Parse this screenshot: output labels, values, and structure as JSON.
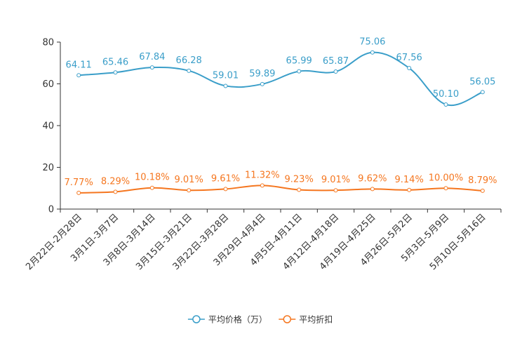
{
  "chart_data": {
    "type": "line",
    "title": "",
    "xlabel": "",
    "ylabel": "",
    "ylim": [
      0,
      80
    ],
    "yticks": [
      0,
      20,
      40,
      60,
      80
    ],
    "grid": false,
    "legend_position": "bottom-center",
    "categories": [
      "2月22日-2月28日",
      "3月1日-3月7日",
      "3月8日-3月14日",
      "3月15日-3月21日",
      "3月22日-3月28日",
      "3月29日-4月4日",
      "4月5日-4月11日",
      "4月12日-4月18日",
      "4月19日-4月25日",
      "4月26日-5月2日",
      "5月3日-5月9日",
      "5月10日-5月16日"
    ],
    "series": [
      {
        "name": "平均价格（万）",
        "color": "#3a9ec9",
        "values": [
          64.11,
          65.46,
          67.84,
          66.28,
          59.01,
          59.89,
          65.99,
          65.87,
          75.06,
          67.56,
          50.1,
          56.05
        ],
        "labels": [
          "64.11",
          "65.46",
          "67.84",
          "66.28",
          "59.01",
          "59.89",
          "65.99",
          "65.87",
          "75.06",
          "67.56",
          "50.10",
          "56.05"
        ]
      },
      {
        "name": "平均折扣",
        "color": "#f5761f",
        "values": [
          7.77,
          8.29,
          10.18,
          9.01,
          9.61,
          11.32,
          9.23,
          9.01,
          9.62,
          9.14,
          10.0,
          8.79
        ],
        "labels": [
          "7.77%",
          "8.29%",
          "10.18%",
          "9.01%",
          "9.61%",
          "11.32%",
          "9.23%",
          "9.01%",
          "9.62%",
          "9.14%",
          "10.00%",
          "8.79%"
        ]
      }
    ]
  }
}
